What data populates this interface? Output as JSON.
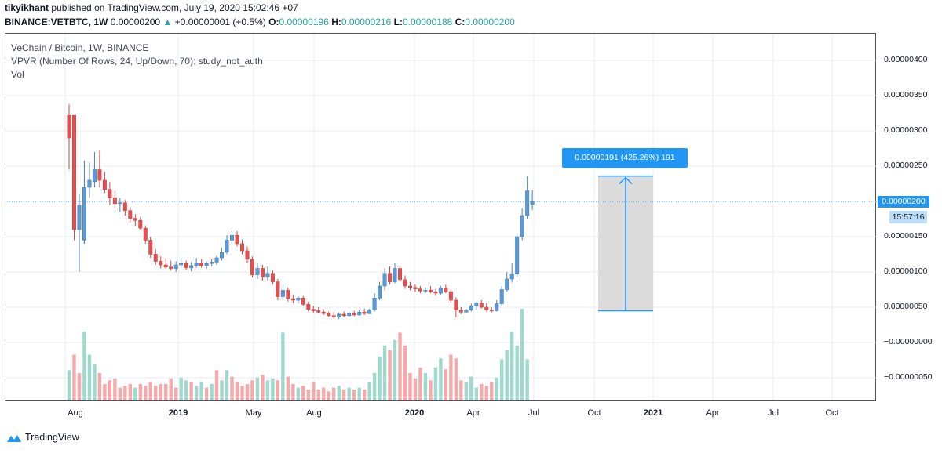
{
  "header": {
    "author": "tikyikhant",
    "published_text": "published on TradingView.com, July 19, 2020 15:02:46 +07",
    "symbol": "BINANCE:VETBTC,",
    "interval": "1W",
    "last_price": "0.00000200",
    "change_arrow": "▲",
    "change": "+0.00000001 (+0.5%)",
    "o_label": "O:",
    "o_value": "0.00000196",
    "h_label": "H:",
    "h_value": "0.00000216",
    "l_label": "L:",
    "l_value": "0.00000188",
    "c_label": "C:",
    "c_value": "0.00000200"
  },
  "legend": {
    "line1": "VeChain / Bitcoin, 1W, BINANCE",
    "line2": "VPVR (Number Of Rows, 24, Up/Down, 70): study_not_auth",
    "line3": "Vol"
  },
  "price_axis": {
    "ticks": [
      "0.00000400",
      "0.00000350",
      "0.00000300",
      "0.00000250",
      "0.00000200",
      "0.00000150",
      "0.00000100",
      "0.00000050",
      "−0.00000000",
      "−0.00000050"
    ],
    "current_price_label": "0.00000200",
    "countdown": "15:57:16"
  },
  "time_axis": {
    "labels": [
      {
        "text": "Aug",
        "year": false
      },
      {
        "text": "2019",
        "year": true
      },
      {
        "text": "May",
        "year": false
      },
      {
        "text": "Aug",
        "year": false
      },
      {
        "text": "2020",
        "year": true
      },
      {
        "text": "Apr",
        "year": false
      },
      {
        "text": "Jul",
        "year": false
      },
      {
        "text": "Oct",
        "year": false
      },
      {
        "text": "2021",
        "year": true
      },
      {
        "text": "Apr",
        "year": false
      },
      {
        "text": "Jul",
        "year": false
      },
      {
        "text": "Oct",
        "year": false
      }
    ]
  },
  "measure": {
    "label": "0.00000191 (425.26%) 191",
    "from_price": 4.5e-07,
    "to_price": 2.36e-06
  },
  "footer": {
    "brand": "TradingView"
  },
  "colors": {
    "up": "#26a69a",
    "down": "#ef5350",
    "up_candle_fill": "#5b9bd5",
    "down_candle_fill": "#e05252",
    "vol_up": "#9fd9cd",
    "vol_down": "#f4aaaa",
    "accent": "#2196f3",
    "measure_fill": "#d9d9d9"
  },
  "chart_data": {
    "type": "candlestick",
    "title": "VeChain / Bitcoin, 1W, BINANCE",
    "series_name": "VETBTC",
    "ylim": [
      -6e-07,
      4.2e-06
    ],
    "grid": true,
    "candles": [
      {
        "o": 3.22,
        "h": 3.38,
        "l": 2.45,
        "c": 2.9
      },
      {
        "o": 3.22,
        "h": 3.22,
        "l": 1.45,
        "c": 1.6
      },
      {
        "o": 1.6,
        "h": 2.1,
        "l": 1.0,
        "c": 1.95
      },
      {
        "o": 1.45,
        "h": 2.58,
        "l": 1.4,
        "c": 2.2
      },
      {
        "o": 2.2,
        "h": 2.55,
        "l": 2.05,
        "c": 2.3
      },
      {
        "o": 2.28,
        "h": 2.7,
        "l": 2.2,
        "c": 2.45
      },
      {
        "o": 2.45,
        "h": 2.72,
        "l": 2.2,
        "c": 2.3
      },
      {
        "o": 2.3,
        "h": 2.42,
        "l": 2.12,
        "c": 2.17
      },
      {
        "o": 2.17,
        "h": 2.28,
        "l": 1.95,
        "c": 2.05
      },
      {
        "o": 2.05,
        "h": 2.15,
        "l": 1.9,
        "c": 1.97
      },
      {
        "o": 1.97,
        "h": 2.05,
        "l": 1.85,
        "c": 1.98
      },
      {
        "o": 1.98,
        "h": 2.02,
        "l": 1.8,
        "c": 1.87
      },
      {
        "o": 1.87,
        "h": 1.92,
        "l": 1.7,
        "c": 1.76
      },
      {
        "o": 1.76,
        "h": 1.82,
        "l": 1.65,
        "c": 1.73
      },
      {
        "o": 1.73,
        "h": 1.78,
        "l": 1.6,
        "c": 1.62
      },
      {
        "o": 1.62,
        "h": 1.66,
        "l": 1.4,
        "c": 1.45
      },
      {
        "o": 1.45,
        "h": 1.5,
        "l": 1.2,
        "c": 1.25
      },
      {
        "o": 1.25,
        "h": 1.32,
        "l": 1.1,
        "c": 1.15
      },
      {
        "o": 1.15,
        "h": 1.22,
        "l": 1.05,
        "c": 1.1
      },
      {
        "o": 1.1,
        "h": 1.2,
        "l": 1.04,
        "c": 1.07
      },
      {
        "o": 1.07,
        "h": 1.16,
        "l": 1.02,
        "c": 1.05
      },
      {
        "o": 1.05,
        "h": 1.15,
        "l": 1.0,
        "c": 1.1
      },
      {
        "o": 1.1,
        "h": 1.2,
        "l": 1.05,
        "c": 1.12
      },
      {
        "o": 1.12,
        "h": 1.16,
        "l": 1.03,
        "c": 1.06
      },
      {
        "o": 1.06,
        "h": 1.14,
        "l": 1.01,
        "c": 1.09
      },
      {
        "o": 1.09,
        "h": 1.2,
        "l": 1.06,
        "c": 1.12
      },
      {
        "o": 1.12,
        "h": 1.18,
        "l": 1.06,
        "c": 1.09
      },
      {
        "o": 1.09,
        "h": 1.15,
        "l": 1.04,
        "c": 1.12
      },
      {
        "o": 1.12,
        "h": 1.18,
        "l": 1.08,
        "c": 1.14
      },
      {
        "o": 1.14,
        "h": 1.23,
        "l": 1.1,
        "c": 1.2
      },
      {
        "o": 1.2,
        "h": 1.34,
        "l": 1.16,
        "c": 1.28
      },
      {
        "o": 1.28,
        "h": 1.52,
        "l": 1.25,
        "c": 1.45
      },
      {
        "o": 1.45,
        "h": 1.58,
        "l": 1.4,
        "c": 1.52
      },
      {
        "o": 1.52,
        "h": 1.58,
        "l": 1.36,
        "c": 1.4
      },
      {
        "o": 1.4,
        "h": 1.46,
        "l": 1.25,
        "c": 1.3
      },
      {
        "o": 1.3,
        "h": 1.36,
        "l": 1.12,
        "c": 1.18
      },
      {
        "o": 1.18,
        "h": 1.22,
        "l": 0.92,
        "c": 0.96
      },
      {
        "o": 0.96,
        "h": 1.12,
        "l": 0.9,
        "c": 1.05
      },
      {
        "o": 1.05,
        "h": 1.1,
        "l": 0.88,
        "c": 0.93
      },
      {
        "o": 0.93,
        "h": 1.08,
        "l": 0.88,
        "c": 0.98
      },
      {
        "o": 0.98,
        "h": 1.02,
        "l": 0.82,
        "c": 0.86
      },
      {
        "o": 0.86,
        "h": 0.9,
        "l": 0.6,
        "c": 0.65
      },
      {
        "o": 0.65,
        "h": 0.82,
        "l": 0.6,
        "c": 0.74
      },
      {
        "o": 0.74,
        "h": 0.78,
        "l": 0.58,
        "c": 0.62
      },
      {
        "o": 0.62,
        "h": 0.68,
        "l": 0.56,
        "c": 0.6
      },
      {
        "o": 0.6,
        "h": 0.66,
        "l": 0.55,
        "c": 0.63
      },
      {
        "o": 0.63,
        "h": 0.66,
        "l": 0.52,
        "c": 0.54
      },
      {
        "o": 0.54,
        "h": 0.58,
        "l": 0.44,
        "c": 0.47
      },
      {
        "o": 0.47,
        "h": 0.52,
        "l": 0.42,
        "c": 0.45
      },
      {
        "o": 0.45,
        "h": 0.5,
        "l": 0.41,
        "c": 0.43
      },
      {
        "o": 0.43,
        "h": 0.47,
        "l": 0.39,
        "c": 0.41
      },
      {
        "o": 0.41,
        "h": 0.44,
        "l": 0.36,
        "c": 0.38
      },
      {
        "o": 0.38,
        "h": 0.43,
        "l": 0.34,
        "c": 0.36
      },
      {
        "o": 0.36,
        "h": 0.42,
        "l": 0.33,
        "c": 0.4
      },
      {
        "o": 0.4,
        "h": 0.44,
        "l": 0.36,
        "c": 0.38
      },
      {
        "o": 0.38,
        "h": 0.44,
        "l": 0.36,
        "c": 0.41
      },
      {
        "o": 0.41,
        "h": 0.45,
        "l": 0.37,
        "c": 0.39
      },
      {
        "o": 0.39,
        "h": 0.46,
        "l": 0.38,
        "c": 0.43
      },
      {
        "o": 0.43,
        "h": 0.48,
        "l": 0.39,
        "c": 0.41
      },
      {
        "o": 0.41,
        "h": 0.48,
        "l": 0.4,
        "c": 0.46
      },
      {
        "o": 0.46,
        "h": 0.7,
        "l": 0.44,
        "c": 0.63
      },
      {
        "o": 0.63,
        "h": 0.86,
        "l": 0.6,
        "c": 0.8
      },
      {
        "o": 0.8,
        "h": 1.05,
        "l": 0.74,
        "c": 0.98
      },
      {
        "o": 0.98,
        "h": 1.08,
        "l": 0.82,
        "c": 0.86
      },
      {
        "o": 0.86,
        "h": 1.12,
        "l": 0.84,
        "c": 1.05
      },
      {
        "o": 1.05,
        "h": 1.08,
        "l": 0.86,
        "c": 0.89
      },
      {
        "o": 0.89,
        "h": 0.95,
        "l": 0.76,
        "c": 0.8
      },
      {
        "o": 0.8,
        "h": 0.86,
        "l": 0.74,
        "c": 0.78
      },
      {
        "o": 0.78,
        "h": 0.82,
        "l": 0.72,
        "c": 0.76
      },
      {
        "o": 0.76,
        "h": 0.8,
        "l": 0.7,
        "c": 0.73
      },
      {
        "o": 0.73,
        "h": 0.78,
        "l": 0.7,
        "c": 0.74
      },
      {
        "o": 0.74,
        "h": 0.8,
        "l": 0.7,
        "c": 0.72
      },
      {
        "o": 0.72,
        "h": 0.76,
        "l": 0.66,
        "c": 0.7
      },
      {
        "o": 0.7,
        "h": 0.8,
        "l": 0.68,
        "c": 0.77
      },
      {
        "o": 0.77,
        "h": 0.82,
        "l": 0.7,
        "c": 0.72
      },
      {
        "o": 0.72,
        "h": 0.76,
        "l": 0.56,
        "c": 0.6
      },
      {
        "o": 0.6,
        "h": 0.64,
        "l": 0.36,
        "c": 0.46
      },
      {
        "o": 0.46,
        "h": 0.5,
        "l": 0.4,
        "c": 0.43
      },
      {
        "o": 0.43,
        "h": 0.48,
        "l": 0.41,
        "c": 0.46
      },
      {
        "o": 0.46,
        "h": 0.55,
        "l": 0.44,
        "c": 0.52
      },
      {
        "o": 0.52,
        "h": 0.58,
        "l": 0.46,
        "c": 0.56
      },
      {
        "o": 0.56,
        "h": 0.6,
        "l": 0.48,
        "c": 0.5
      },
      {
        "o": 0.5,
        "h": 0.56,
        "l": 0.44,
        "c": 0.46
      },
      {
        "o": 0.46,
        "h": 0.5,
        "l": 0.42,
        "c": 0.45
      },
      {
        "o": 0.45,
        "h": 0.6,
        "l": 0.44,
        "c": 0.55
      },
      {
        "o": 0.55,
        "h": 0.8,
        "l": 0.52,
        "c": 0.75
      },
      {
        "o": 0.75,
        "h": 1.0,
        "l": 0.72,
        "c": 0.9
      },
      {
        "o": 0.9,
        "h": 1.12,
        "l": 0.85,
        "c": 0.97
      },
      {
        "o": 0.97,
        "h": 1.55,
        "l": 0.92,
        "c": 1.5
      },
      {
        "o": 1.5,
        "h": 1.9,
        "l": 1.45,
        "c": 1.8
      },
      {
        "o": 1.8,
        "h": 2.36,
        "l": 1.75,
        "c": 2.15
      },
      {
        "o": 1.96,
        "h": 2.16,
        "l": 1.88,
        "c": 2.0
      }
    ],
    "volume": [
      {
        "v": 0.33,
        "up": true
      },
      {
        "v": 0.5,
        "up": false
      },
      {
        "v": 0.3,
        "up": false
      },
      {
        "v": 0.75,
        "up": true
      },
      {
        "v": 0.5,
        "up": true
      },
      {
        "v": 0.4,
        "up": true
      },
      {
        "v": 0.3,
        "up": false
      },
      {
        "v": 0.18,
        "up": false
      },
      {
        "v": 0.22,
        "up": false
      },
      {
        "v": 0.24,
        "up": false
      },
      {
        "v": 0.14,
        "up": false
      },
      {
        "v": 0.16,
        "up": false
      },
      {
        "v": 0.18,
        "up": false
      },
      {
        "v": 0.14,
        "up": true
      },
      {
        "v": 0.18,
        "up": false
      },
      {
        "v": 0.16,
        "up": false
      },
      {
        "v": 0.2,
        "up": false
      },
      {
        "v": 0.16,
        "up": false
      },
      {
        "v": 0.18,
        "up": false
      },
      {
        "v": 0.18,
        "up": false
      },
      {
        "v": 0.24,
        "up": false
      },
      {
        "v": 0.14,
        "up": false
      },
      {
        "v": 0.25,
        "up": true
      },
      {
        "v": 0.22,
        "up": true
      },
      {
        "v": 0.2,
        "up": false
      },
      {
        "v": 0.16,
        "up": true
      },
      {
        "v": 0.2,
        "up": true
      },
      {
        "v": 0.14,
        "up": false
      },
      {
        "v": 0.18,
        "up": true
      },
      {
        "v": 0.33,
        "up": false
      },
      {
        "v": 0.22,
        "up": true
      },
      {
        "v": 0.33,
        "up": true
      },
      {
        "v": 0.26,
        "up": false
      },
      {
        "v": 0.2,
        "up": false
      },
      {
        "v": 0.16,
        "up": false
      },
      {
        "v": 0.18,
        "up": false
      },
      {
        "v": 0.22,
        "up": false
      },
      {
        "v": 0.25,
        "up": true
      },
      {
        "v": 0.28,
        "up": false
      },
      {
        "v": 0.22,
        "up": true
      },
      {
        "v": 0.24,
        "up": true
      },
      {
        "v": 0.22,
        "up": false
      },
      {
        "v": 0.74,
        "up": true
      },
      {
        "v": 0.26,
        "up": false
      },
      {
        "v": 0.18,
        "up": false
      },
      {
        "v": 0.14,
        "up": true
      },
      {
        "v": 0.16,
        "up": false
      },
      {
        "v": 0.12,
        "up": false
      },
      {
        "v": 0.2,
        "up": false
      },
      {
        "v": 0.12,
        "up": false
      },
      {
        "v": 0.14,
        "up": false
      },
      {
        "v": 0.1,
        "up": false
      },
      {
        "v": 0.14,
        "up": false
      },
      {
        "v": 0.16,
        "up": true
      },
      {
        "v": 0.12,
        "up": false
      },
      {
        "v": 0.14,
        "up": true
      },
      {
        "v": 0.12,
        "up": false
      },
      {
        "v": 0.14,
        "up": true
      },
      {
        "v": 0.12,
        "up": false
      },
      {
        "v": 0.2,
        "up": true
      },
      {
        "v": 0.3,
        "up": true
      },
      {
        "v": 0.48,
        "up": true
      },
      {
        "v": 0.6,
        "up": true
      },
      {
        "v": 0.55,
        "up": false
      },
      {
        "v": 0.66,
        "up": true
      },
      {
        "v": 0.74,
        "up": false
      },
      {
        "v": 0.6,
        "up": false
      },
      {
        "v": 0.3,
        "up": false
      },
      {
        "v": 0.24,
        "up": false
      },
      {
        "v": 0.36,
        "up": false
      },
      {
        "v": 0.3,
        "up": true
      },
      {
        "v": 0.22,
        "up": false
      },
      {
        "v": 0.36,
        "up": true
      },
      {
        "v": 0.46,
        "up": true
      },
      {
        "v": 0.34,
        "up": false
      },
      {
        "v": 0.5,
        "up": false
      },
      {
        "v": 0.46,
        "up": false
      },
      {
        "v": 0.22,
        "up": false
      },
      {
        "v": 0.2,
        "up": true
      },
      {
        "v": 0.26,
        "up": true
      },
      {
        "v": 0.14,
        "up": true
      },
      {
        "v": 0.18,
        "up": false
      },
      {
        "v": 0.16,
        "up": false
      },
      {
        "v": 0.2,
        "up": false
      },
      {
        "v": 0.25,
        "up": true
      },
      {
        "v": 0.45,
        "up": true
      },
      {
        "v": 0.55,
        "up": true
      },
      {
        "v": 0.75,
        "up": true
      },
      {
        "v": 0.6,
        "up": true
      },
      {
        "v": 1.0,
        "up": true
      },
      {
        "v": 0.45,
        "up": true
      }
    ]
  }
}
